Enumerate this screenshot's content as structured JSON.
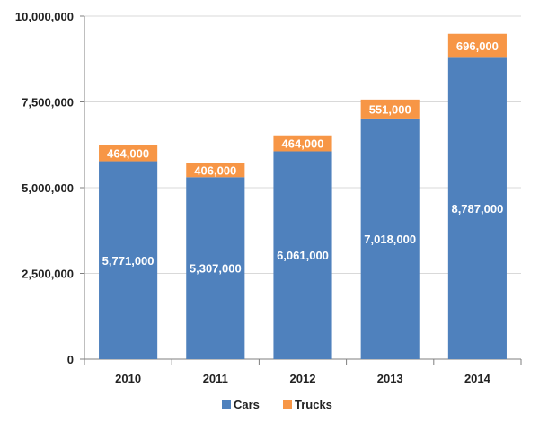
{
  "chart_data": {
    "type": "bar",
    "stacked": true,
    "categories": [
      "2010",
      "2011",
      "2012",
      "2013",
      "2014"
    ],
    "series": [
      {
        "name": "Cars",
        "color": "#4F81BD",
        "values": [
          5771000,
          5307000,
          6061000,
          7018000,
          8787000
        ],
        "labels": [
          "5,771,000",
          "5,307,000",
          "6,061,000",
          "7,018,000",
          "8,787,000"
        ]
      },
      {
        "name": "Trucks",
        "color": "#F79646",
        "values": [
          464000,
          406000,
          464000,
          551000,
          696000
        ],
        "labels": [
          "464,000",
          "406,000",
          "464,000",
          "551,000",
          "696,000"
        ]
      }
    ],
    "ylim": [
      0,
      10000000
    ],
    "yticks": [
      0,
      2500000,
      5000000,
      7500000,
      10000000
    ],
    "ytick_labels": [
      "0",
      "2,500,000",
      "5,000,000",
      "7,500,000",
      "10,000,000"
    ],
    "grid": true,
    "legend_position": "bottom"
  }
}
